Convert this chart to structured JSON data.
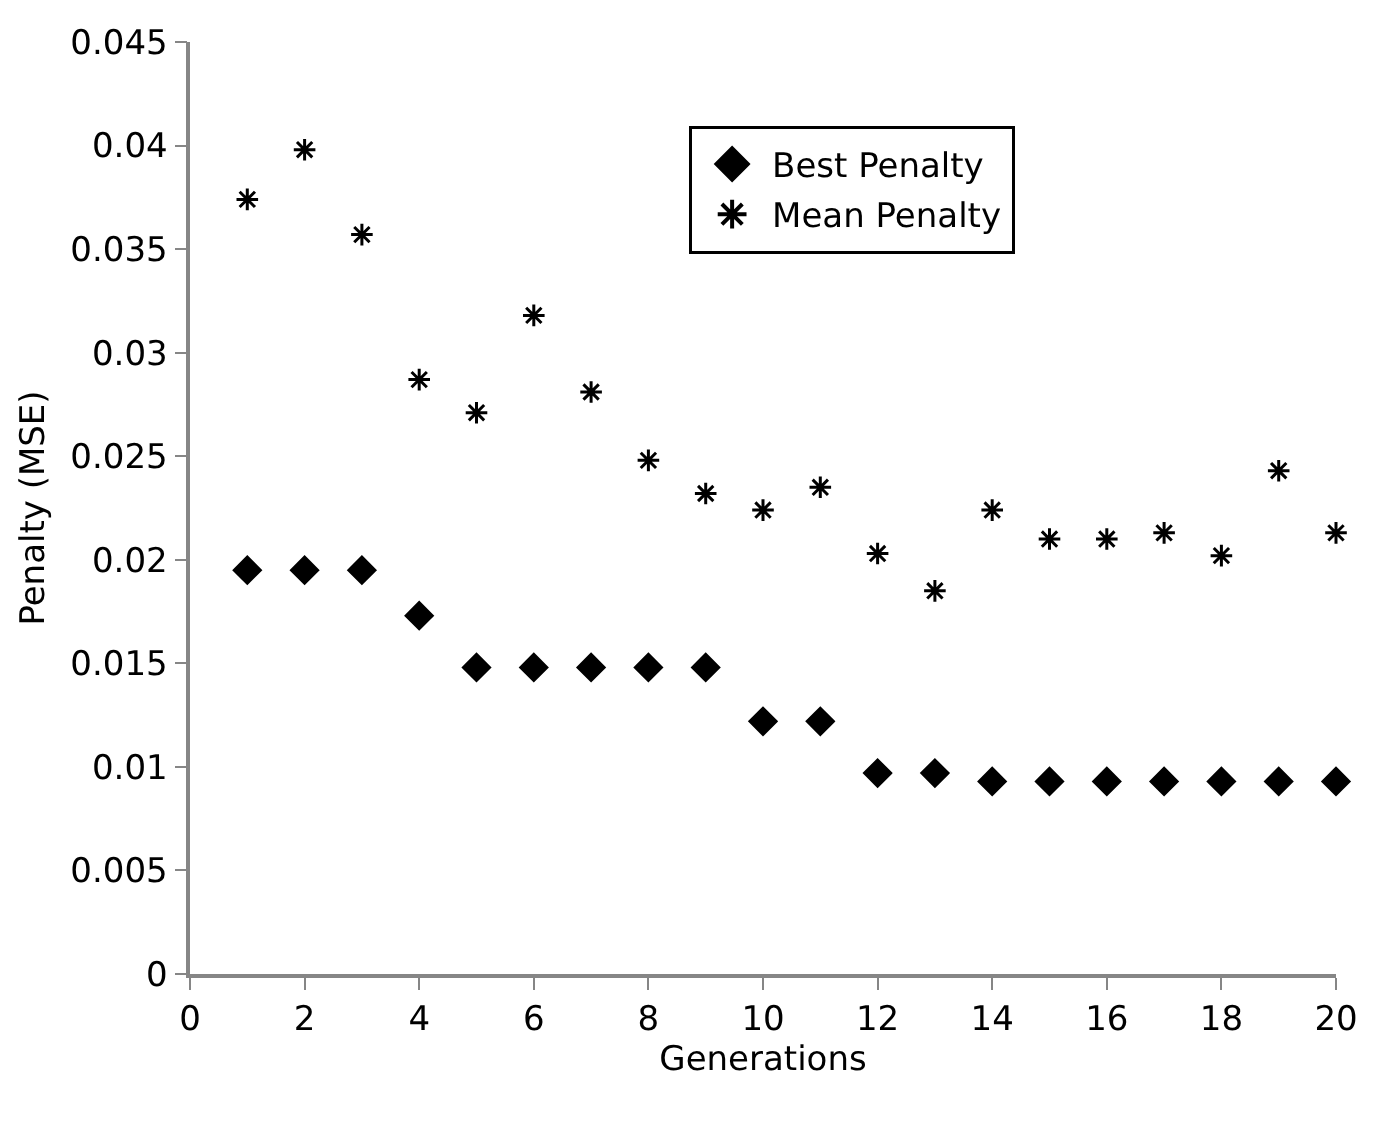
{
  "chart_data": {
    "type": "scatter",
    "xlabel": "Generations",
    "ylabel": "Penalty (MSE)",
    "x": [
      1,
      2,
      3,
      4,
      5,
      6,
      7,
      8,
      9,
      10,
      11,
      12,
      13,
      14,
      15,
      16,
      17,
      18,
      19,
      20
    ],
    "series": [
      {
        "name": "Best Penalty",
        "color": "#000000",
        "marker": "diamond",
        "values": [
          0.0195,
          0.0195,
          0.0195,
          0.0173,
          0.0148,
          0.0148,
          0.0148,
          0.0148,
          0.0148,
          0.0122,
          0.0122,
          0.0097,
          0.0097,
          0.0093,
          0.0093,
          0.0093,
          0.0093,
          0.0093,
          0.0093,
          0.0093
        ]
      },
      {
        "name": "Mean Penalty",
        "color": "#000000",
        "marker": "cross",
        "values": [
          0.0374,
          0.0398,
          0.0357,
          0.0287,
          0.0271,
          0.0318,
          0.0281,
          0.0248,
          0.0232,
          0.0224,
          0.0235,
          0.0203,
          0.0185,
          0.0224,
          0.021,
          0.021,
          0.0213,
          0.0202,
          0.0243,
          0.0213
        ]
      }
    ],
    "xlim": [
      0,
      20
    ],
    "xticks": [
      0,
      2,
      4,
      6,
      8,
      10,
      12,
      14,
      16,
      18,
      20
    ],
    "ylim": [
      0,
      0.045
    ],
    "yticks": [
      0,
      0.005,
      0.01,
      0.015,
      0.02,
      0.025,
      0.03,
      0.035,
      0.04,
      0.045
    ],
    "legend": "top right"
  }
}
